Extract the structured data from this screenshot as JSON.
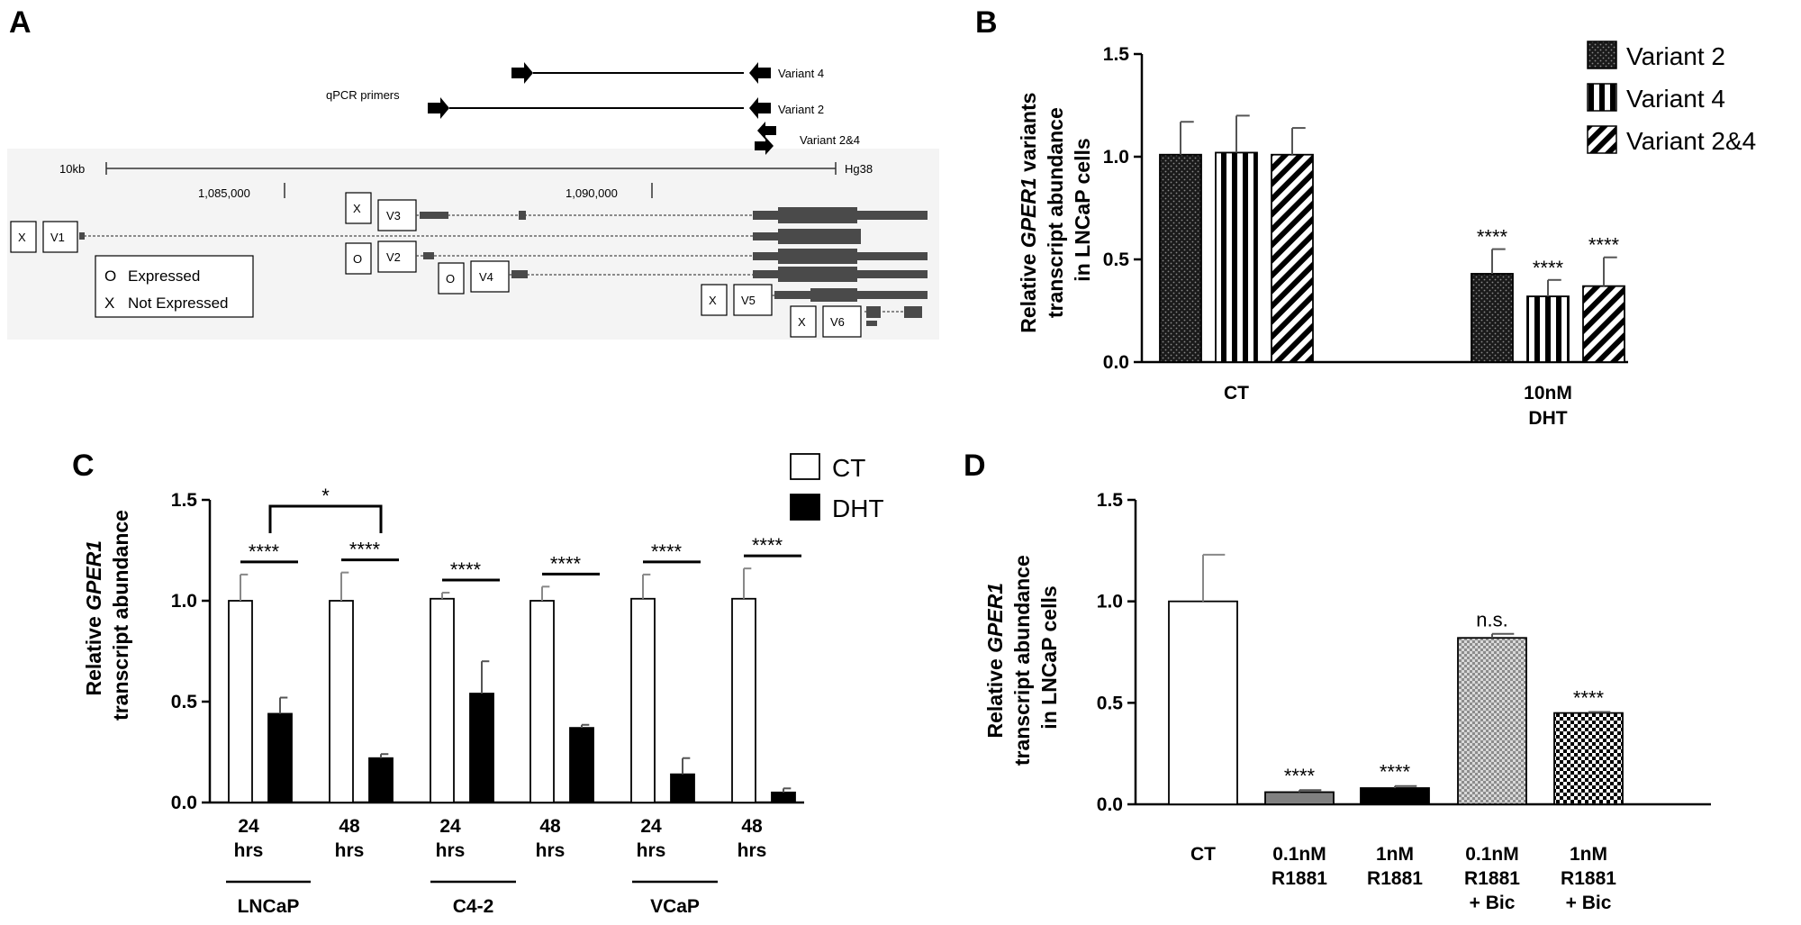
{
  "panel_labels": {
    "a": "A",
    "b": "B",
    "c": "C",
    "d": "D"
  },
  "colors": {
    "black": "#000000",
    "dark_gray": "#3c3c3c",
    "gray_bar": "#808080",
    "white": "#ffffff",
    "track": "#4a4a4a"
  },
  "genome": {
    "primer_label": "qPCR primers",
    "primers": [
      {
        "name": "Variant 4"
      },
      {
        "name": "Variant 2"
      },
      {
        "name": "Variant 2&4"
      }
    ],
    "scale_label": "10kb",
    "assembly": "Hg38",
    "coord_left": "1,085,000",
    "coord_right": "1,090,000",
    "variants": [
      {
        "id": "V1",
        "status": "X"
      },
      {
        "id": "V2",
        "status": "O"
      },
      {
        "id": "V3",
        "status": "X"
      },
      {
        "id": "V4",
        "status": "O"
      },
      {
        "id": "V5",
        "status": "X"
      },
      {
        "id": "V6",
        "status": "X"
      }
    ],
    "legend": [
      {
        "symbol": "O",
        "text": "Expressed"
      },
      {
        "symbol": "X",
        "text": "Not Expressed"
      }
    ]
  },
  "chart_data": [
    {
      "panel": "B",
      "type": "bar",
      "ylabel_parts": [
        "Relative ",
        "GPER1",
        " variants",
        "transcript abundance",
        "in LNCaP cells"
      ],
      "ylim": [
        0,
        1.5
      ],
      "yticks": [
        "0.0",
        "0.5",
        "1.0",
        "1.5"
      ],
      "groups": [
        [
          "CT"
        ],
        [
          "10nM",
          "DHT"
        ]
      ],
      "series": [
        {
          "name": "Variant 2",
          "values": [
            1.01,
            0.43
          ],
          "errors": [
            0.16,
            0.12
          ]
        },
        {
          "name": "Variant 4",
          "values": [
            1.02,
            0.32
          ],
          "errors": [
            0.18,
            0.08
          ]
        },
        {
          "name": "Variant 2&4",
          "values": [
            1.01,
            0.37
          ],
          "errors": [
            0.13,
            0.14
          ]
        }
      ],
      "annotations": [
        "",
        "",
        "",
        "****",
        "****",
        "****"
      ],
      "legend_position": "top-right"
    },
    {
      "panel": "C",
      "type": "bar",
      "ylabel_parts": [
        "Relative ",
        "GPER1",
        "",
        "transcript abundance",
        ""
      ],
      "ylim": [
        0,
        1.5
      ],
      "yticks": [
        "0.0",
        "0.5",
        "1.0",
        "1.5"
      ],
      "categories": [
        [
          "24",
          "hrs"
        ],
        [
          "48",
          "hrs"
        ],
        [
          "24",
          "hrs"
        ],
        [
          "48",
          "hrs"
        ],
        [
          "24",
          "hrs"
        ],
        [
          "48",
          "hrs"
        ]
      ],
      "cell_lines": [
        "LNCaP",
        "C4-2",
        "VCaP"
      ],
      "series": [
        {
          "name": "CT",
          "values": [
            1.0,
            1.0,
            1.01,
            1.0,
            1.01,
            1.01
          ],
          "errors": [
            0.13,
            0.14,
            0.03,
            0.07,
            0.12,
            0.15
          ]
        },
        {
          "name": "DHT",
          "values": [
            0.44,
            0.22,
            0.54,
            0.37,
            0.14,
            0.05
          ],
          "errors": [
            0.08,
            0.02,
            0.16,
            0.015,
            0.08,
            0.02
          ]
        }
      ],
      "pair_annotations": [
        "****",
        "****",
        "****",
        "****",
        "****",
        "****"
      ],
      "bracket_annotation": "*",
      "legend_position": "top-right"
    },
    {
      "panel": "D",
      "type": "bar",
      "ylabel_parts": [
        "Relative ",
        "GPER1",
        "",
        "transcript abundance",
        "in LNCaP cells"
      ],
      "ylim": [
        0,
        1.5
      ],
      "yticks": [
        "0.0",
        "0.5",
        "1.0",
        "1.5"
      ],
      "categories": [
        [
          "CT"
        ],
        [
          "0.1nM",
          "R1881"
        ],
        [
          "1nM",
          "R1881"
        ],
        [
          "0.1nM",
          "R1881",
          "+ Bic"
        ],
        [
          "1nM",
          "R1881",
          "+ Bic"
        ]
      ],
      "values": [
        1.0,
        0.06,
        0.08,
        0.82,
        0.45
      ],
      "errors": [
        0.23,
        0.01,
        0.01,
        0.02,
        0.005
      ],
      "annotations": [
        "",
        "****",
        "****",
        "n.s.",
        "****"
      ]
    }
  ]
}
